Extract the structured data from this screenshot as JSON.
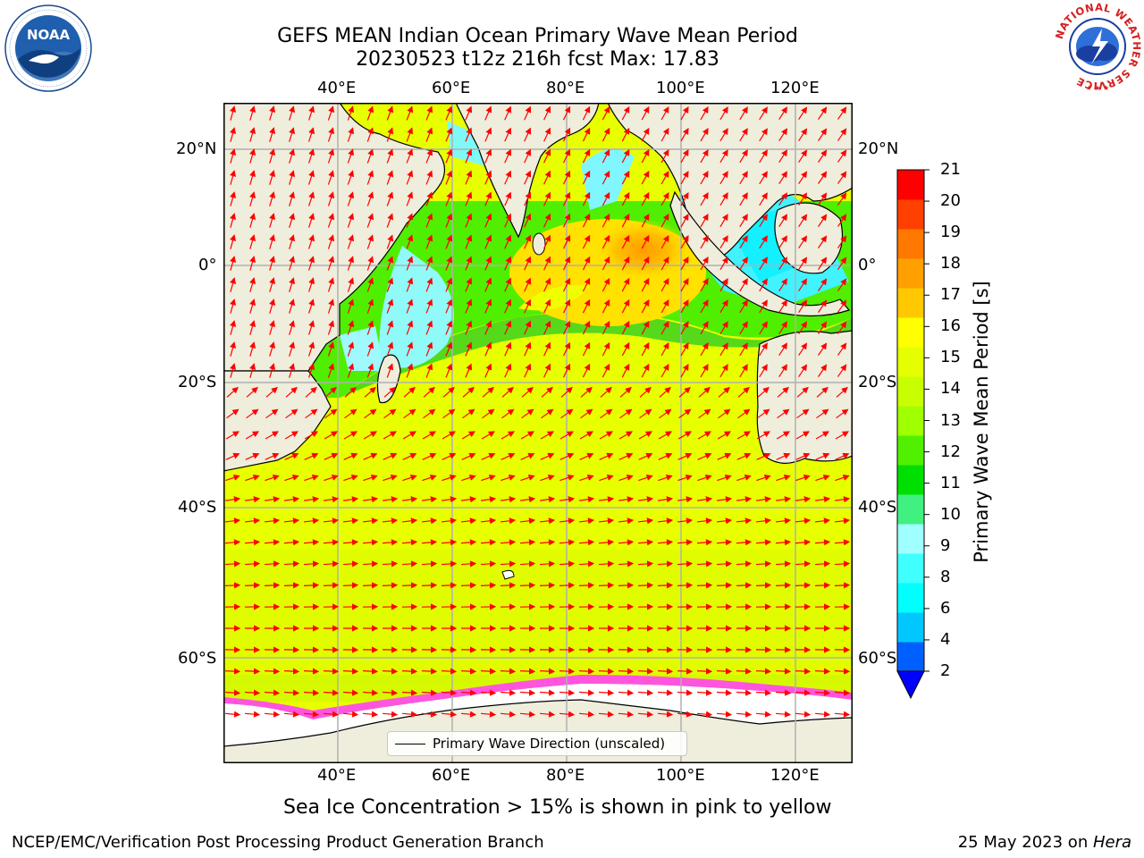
{
  "title": {
    "line1": "GEFS MEAN Indian Ocean Primary Wave Mean Period",
    "line2": "20230523 t12z 216h fcst   Max: 17.83"
  },
  "logos": {
    "left": {
      "name": "NOAA",
      "label": "NOAA"
    },
    "right": {
      "name": "National Weather Service",
      "ring_text": "NATIONAL WEATHER SERVICE"
    }
  },
  "map": {
    "lon_ticks": [
      "40°E",
      "60°E",
      "80°E",
      "100°E",
      "120°E"
    ],
    "lat_ticks": [
      "20°N",
      "0°",
      "20°S",
      "40°S",
      "60°S"
    ],
    "colors": {
      "land": "#efeddc",
      "ice_shelf": "#ffffff",
      "frame": "#000000",
      "grid": "#b0b0b0",
      "arrow": "#ff0000"
    }
  },
  "legend": {
    "label": "Primary Wave Direction (unscaled)"
  },
  "colorbar": {
    "label": "Primary Wave Mean Period [s]",
    "ticks": [
      "2",
      "4",
      "6",
      "8",
      "9",
      "10",
      "11",
      "12",
      "13",
      "14",
      "15",
      "16",
      "17",
      "18",
      "19",
      "20",
      "21"
    ],
    "colors": [
      "#0060ff",
      "#00c8ff",
      "#00ffff",
      "#40ffff",
      "#a0ffff",
      "#40f080",
      "#00e000",
      "#50f000",
      "#a0ff00",
      "#c8ff00",
      "#e6ff00",
      "#ffff00",
      "#ffc800",
      "#ffa000",
      "#ff7800",
      "#ff4000",
      "#ff0000"
    ],
    "extend_color": "#0000ff"
  },
  "ice_note": "Sea Ice Concentration > 15% is shown in pink to yellow",
  "footer": {
    "left": "NCEP/EMC/Verification Post Processing Product Generation Branch",
    "right_prefix": "25 May 2023 on ",
    "right_machine": "Hera"
  }
}
